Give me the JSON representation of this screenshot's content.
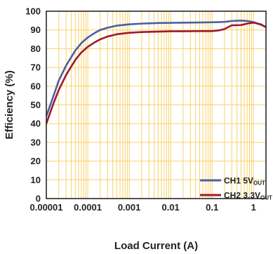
{
  "chart_data": {
    "type": "line",
    "title": "",
    "xlabel": "Load Current (A)",
    "ylabel": "Efficiency (%)",
    "xscale": "log",
    "xlim": [
      1e-05,
      2
    ],
    "ylim": [
      0,
      100
    ],
    "x_tick_labels": [
      "0.00001",
      "0.0001",
      "0.001",
      "0.01",
      "0.1",
      "1"
    ],
    "y_tick_labels": [
      "0",
      "10",
      "20",
      "30",
      "40",
      "50",
      "60",
      "70",
      "80",
      "90",
      "100"
    ],
    "grid": "on",
    "grid_color": "#f7d26a",
    "legend_position": "bottom-right",
    "series": [
      {
        "name": "CH1 5V",
        "name_subscript": "OUT",
        "color": "#4a5fa0",
        "points": [
          [
            1e-05,
            44
          ],
          [
            1.5e-05,
            55
          ],
          [
            2e-05,
            63
          ],
          [
            3e-05,
            71
          ],
          [
            5e-05,
            79
          ],
          [
            7e-05,
            83
          ],
          [
            0.0001,
            86
          ],
          [
            0.00015,
            88.5
          ],
          [
            0.0002,
            90
          ],
          [
            0.0003,
            91.2
          ],
          [
            0.0005,
            92.3
          ],
          [
            0.001,
            93
          ],
          [
            0.002,
            93.4
          ],
          [
            0.005,
            93.7
          ],
          [
            0.01,
            93.8
          ],
          [
            0.02,
            93.9
          ],
          [
            0.05,
            94
          ],
          [
            0.1,
            94.1
          ],
          [
            0.2,
            94.3
          ],
          [
            0.3,
            94.8
          ],
          [
            0.5,
            95
          ],
          [
            0.7,
            94.8
          ],
          [
            1,
            94.2
          ],
          [
            1.5,
            92.8
          ],
          [
            2,
            91.5
          ]
        ]
      },
      {
        "name": "CH2 3.3V",
        "name_subscript": "OUT",
        "color": "#9e1a2c",
        "points": [
          [
            1e-05,
            40
          ],
          [
            1.5e-05,
            51
          ],
          [
            2e-05,
            58
          ],
          [
            3e-05,
            66
          ],
          [
            5e-05,
            74
          ],
          [
            7e-05,
            78
          ],
          [
            0.0001,
            81
          ],
          [
            0.00015,
            83.5
          ],
          [
            0.0002,
            85
          ],
          [
            0.0003,
            86.5
          ],
          [
            0.0005,
            87.7
          ],
          [
            0.001,
            88.5
          ],
          [
            0.002,
            88.9
          ],
          [
            0.005,
            89.1
          ],
          [
            0.01,
            89.3
          ],
          [
            0.02,
            89.3
          ],
          [
            0.05,
            89.4
          ],
          [
            0.1,
            89.4
          ],
          [
            0.15,
            89.8
          ],
          [
            0.2,
            90.5
          ],
          [
            0.3,
            92.5
          ],
          [
            0.5,
            92.6
          ],
          [
            0.7,
            93.4
          ],
          [
            1,
            93.9
          ],
          [
            1.5,
            93
          ],
          [
            2,
            91.5
          ]
        ]
      }
    ]
  }
}
